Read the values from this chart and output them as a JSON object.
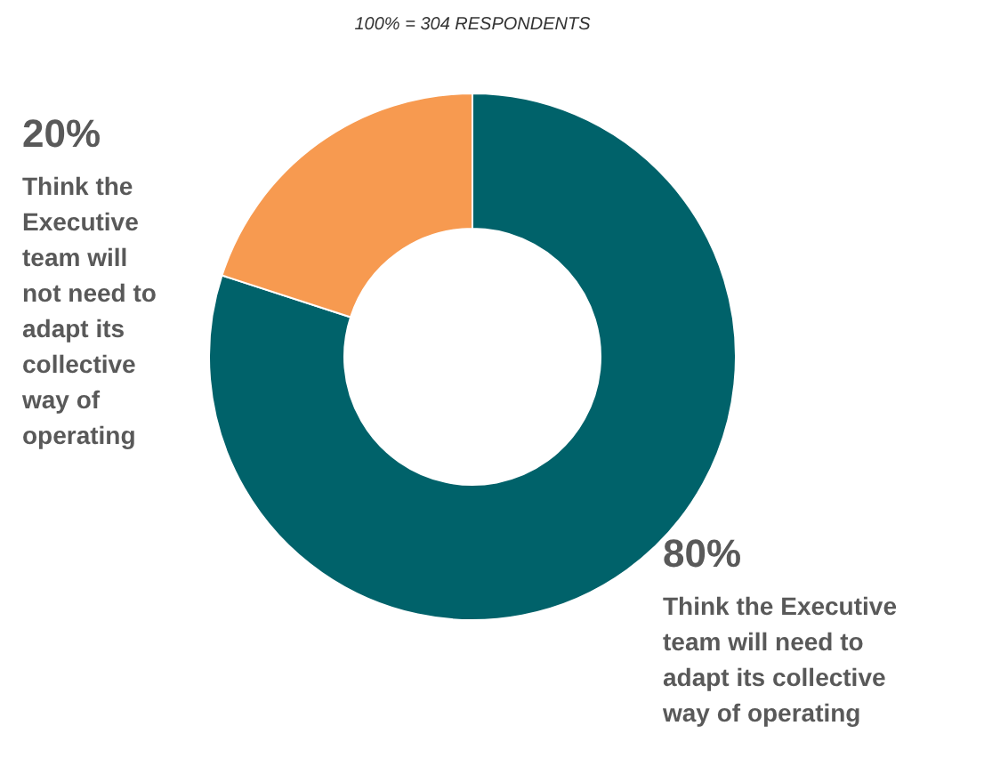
{
  "chart_data": {
    "type": "donut",
    "title": "100% = 304 RESPONDENTS",
    "categories": [
      "Think the Executive team will need to adapt its collective way of operating",
      "Think the Executive team will not need to adapt its collective way of operating"
    ],
    "values": [
      80,
      20
    ],
    "colors": [
      "#00626a",
      "#f79a50"
    ],
    "value_labels": [
      "80%",
      "20%"
    ]
  }
}
